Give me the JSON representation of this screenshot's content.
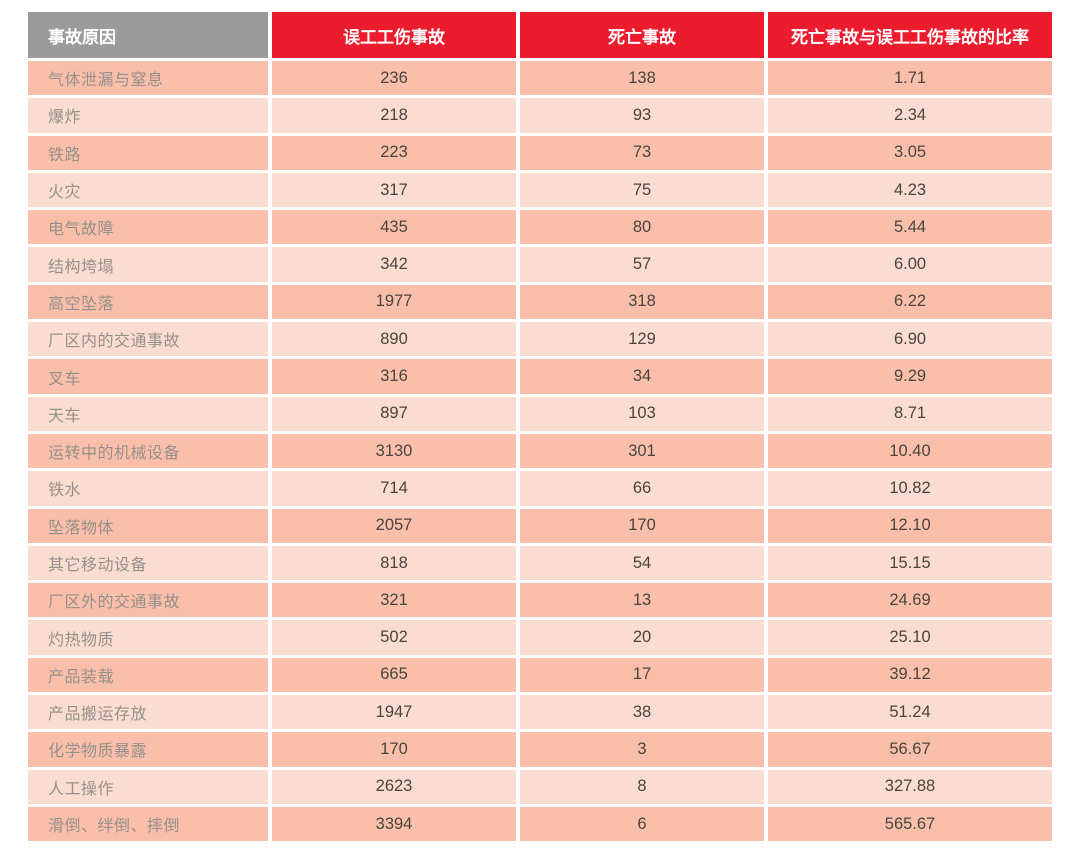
{
  "colors": {
    "header_gray": "#9B9B9B",
    "header_red": "#EC1B2D",
    "row_dark": "#FABFAA",
    "row_light": "#FBDCD0",
    "header_text": "#FFFFFF",
    "label_text": "#96908A",
    "number_text": "#4A443E",
    "page_background": "#FFFFFF"
  },
  "chart_data": {
    "type": "table",
    "columns": [
      "事故原因",
      "误工工伤事故",
      "死亡事故",
      "死亡事故与误工工伤事故的比率"
    ],
    "rows": [
      [
        "气体泄漏与窒息",
        "236",
        "138",
        "1.71"
      ],
      [
        "爆炸",
        "218",
        "93",
        "2.34"
      ],
      [
        "铁路",
        "223",
        "73",
        "3.05"
      ],
      [
        "火灾",
        "317",
        "75",
        "4.23"
      ],
      [
        "电气故障",
        "435",
        "80",
        "5.44"
      ],
      [
        "结构垮塌",
        "342",
        "57",
        "6.00"
      ],
      [
        "高空坠落",
        "1977",
        "318",
        "6.22"
      ],
      [
        "厂区内的交通事故",
        "890",
        "129",
        "6.90"
      ],
      [
        "叉车",
        "316",
        "34",
        "9.29"
      ],
      [
        "天车",
        "897",
        "103",
        "8.71"
      ],
      [
        "运转中的机械设备",
        "3130",
        "301",
        "10.40"
      ],
      [
        "铁水",
        "714",
        "66",
        "10.82"
      ],
      [
        "坠落物体",
        "2057",
        "170",
        "12.10"
      ],
      [
        "其它移动设备",
        "818",
        "54",
        "15.15"
      ],
      [
        "厂区外的交通事故",
        "321",
        "13",
        "24.69"
      ],
      [
        "灼热物质",
        "502",
        "20",
        "25.10"
      ],
      [
        "产品装载",
        "665",
        "17",
        "39.12"
      ],
      [
        "产品搬运存放",
        "1947",
        "38",
        "51.24"
      ],
      [
        "化学物质暴露",
        "170",
        "3",
        "56.67"
      ],
      [
        "人工操作",
        "2623",
        "8",
        "327.88"
      ],
      [
        "滑倒、绊倒、摔倒",
        "3394",
        "6",
        "565.67"
      ]
    ]
  }
}
